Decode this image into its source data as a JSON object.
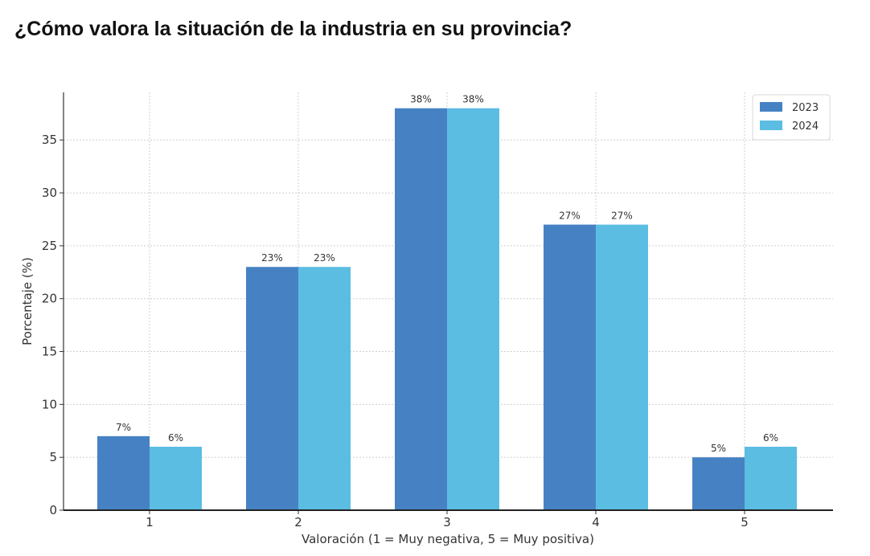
{
  "page": {
    "title": "¿Cómo valora la situación de la industria en su provincia?"
  },
  "colors": {
    "series_2023": "#4682c3",
    "series_2024": "#5bbde2"
  },
  "chart_data": {
    "type": "bar",
    "title": "",
    "xlabel": "Valoración (1 = Muy negativa, 5 = Muy positiva)",
    "ylabel": "Porcentaje (%)",
    "categories": [
      "1",
      "2",
      "3",
      "4",
      "5"
    ],
    "series": [
      {
        "name": "2023",
        "values": [
          7,
          23,
          38,
          27,
          5
        ],
        "labels": [
          "7%",
          "23%",
          "38%",
          "27%",
          "5%"
        ]
      },
      {
        "name": "2024",
        "values": [
          6,
          23,
          38,
          27,
          6
        ],
        "labels": [
          "6%",
          "23%",
          "38%",
          "27%",
          "6%"
        ]
      }
    ],
    "ylim": [
      0,
      39.5
    ],
    "yticks": [
      0,
      5,
      10,
      15,
      20,
      25,
      30,
      35
    ],
    "grid": true,
    "legend_position": "top-right"
  }
}
